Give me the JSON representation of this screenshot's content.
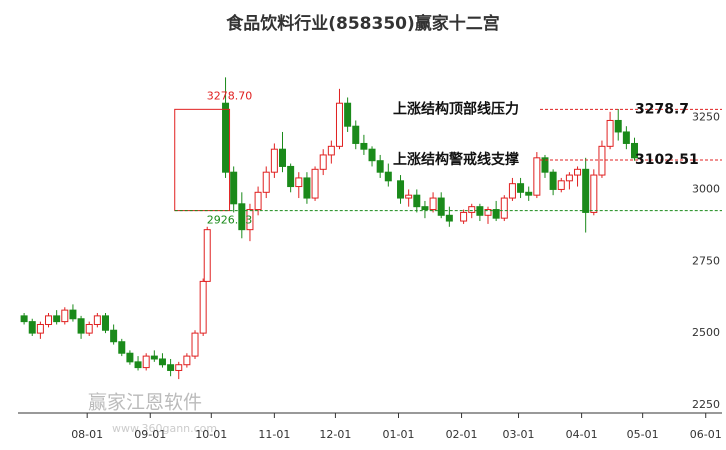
{
  "chart_data": {
    "type": "candlestick",
    "title": "食品饮料行业(858350)赢家十二宫",
    "watermark": "赢家江恩软件",
    "watermark_url": "www.360gann.com",
    "up_color": "#e02020",
    "down_color": "#1a8a1a",
    "xlim": [
      -3,
      343
    ],
    "ylim": [
      2222,
      3520
    ],
    "yticks": [
      2250,
      2500,
      2750,
      3000,
      3250
    ],
    "xticks": [
      {
        "value": 31,
        "label": "08-01"
      },
      {
        "value": 62,
        "label": "09-01"
      },
      {
        "value": 92,
        "label": "10-01"
      },
      {
        "value": 123,
        "label": "11-01"
      },
      {
        "value": 153,
        "label": "12-01"
      },
      {
        "value": 184,
        "label": "01-01"
      },
      {
        "value": 215,
        "label": "02-01"
      },
      {
        "value": 243,
        "label": "03-01"
      },
      {
        "value": 274,
        "label": "04-01"
      },
      {
        "value": 304,
        "label": "05-01"
      },
      {
        "value": 335,
        "label": "06-01"
      }
    ],
    "x": [
      0,
      4,
      8,
      12,
      16,
      20,
      24,
      28,
      32,
      36,
      40,
      44,
      48,
      52,
      56,
      60,
      64,
      68,
      72,
      76,
      80,
      84,
      88,
      90,
      99,
      103,
      107,
      111,
      115,
      119,
      123,
      127,
      131,
      135,
      139,
      143,
      147,
      151,
      155,
      159,
      163,
      167,
      171,
      175,
      179,
      185,
      189,
      193,
      197,
      201,
      205,
      209,
      216,
      220,
      224,
      228,
      232,
      236,
      240,
      244,
      248,
      252,
      256,
      260,
      264,
      268,
      272,
      276,
      280,
      284,
      288,
      292,
      296,
      300
    ],
    "open": [
      2560,
      2540,
      2500,
      2530,
      2560,
      2540,
      2580,
      2550,
      2500,
      2530,
      2560,
      2510,
      2470,
      2430,
      2400,
      2380,
      2420,
      2410,
      2390,
      2370,
      2390,
      2420,
      2500,
      2680,
      3300,
      3060,
      2950,
      2860,
      2930,
      2990,
      3060,
      3140,
      3080,
      3010,
      3040,
      2970,
      3070,
      3120,
      3150,
      3300,
      3220,
      3160,
      3140,
      3100,
      3060,
      3030,
      2970,
      2980,
      2940,
      2930,
      2970,
      2910,
      2890,
      2920,
      2940,
      2910,
      2930,
      2900,
      2970,
      3020,
      2990,
      2980,
      3110,
      3060,
      3000,
      3030,
      3050,
      3070,
      2920,
      3050,
      3150,
      3240,
      3200,
      3160
    ],
    "high": [
      2570,
      2550,
      2540,
      2570,
      2580,
      2590,
      2600,
      2560,
      2540,
      2570,
      2570,
      2530,
      2480,
      2440,
      2420,
      2430,
      2440,
      2430,
      2410,
      2400,
      2430,
      2510,
      2690,
      2870,
      3390,
      3080,
      2990,
      2950,
      3010,
      3080,
      3160,
      3200,
      3090,
      3060,
      3060,
      3080,
      3140,
      3170,
      3350,
      3320,
      3240,
      3190,
      3150,
      3120,
      3090,
      3050,
      3000,
      3000,
      2960,
      2990,
      2990,
      2940,
      2930,
      2950,
      2950,
      2940,
      2960,
      2980,
      3040,
      3040,
      3010,
      3130,
      3120,
      3070,
      3040,
      3060,
      3080,
      3110,
      3070,
      3170,
      3270,
      3280,
      3220,
      3180
    ],
    "low": [
      2530,
      2490,
      2480,
      2520,
      2530,
      2530,
      2540,
      2480,
      2490,
      2520,
      2500,
      2460,
      2420,
      2390,
      2370,
      2370,
      2400,
      2380,
      2350,
      2340,
      2380,
      2410,
      2490,
      2680,
      3040,
      2920,
      2830,
      2820,
      2910,
      2970,
      3040,
      3060,
      2990,
      2970,
      2950,
      2960,
      3050,
      3090,
      3140,
      3200,
      3140,
      3120,
      3080,
      3040,
      3010,
      2950,
      2940,
      2920,
      2900,
      2920,
      2900,
      2870,
      2880,
      2900,
      2890,
      2880,
      2890,
      2890,
      2960,
      2970,
      2960,
      2970,
      3040,
      2980,
      2990,
      3000,
      3010,
      2850,
      2910,
      3040,
      3140,
      3170,
      3140,
      3100
    ],
    "close": [
      2540,
      2500,
      2530,
      2560,
      2540,
      2580,
      2550,
      2500,
      2530,
      2560,
      2510,
      2470,
      2430,
      2400,
      2380,
      2420,
      2410,
      2390,
      2370,
      2390,
      2420,
      2500,
      2680,
      2860,
      3060,
      2950,
      2860,
      2930,
      2990,
      3060,
      3140,
      3080,
      3010,
      3040,
      2970,
      3070,
      3120,
      3150,
      3300,
      3220,
      3160,
      3140,
      3100,
      3060,
      3030,
      2970,
      2980,
      2940,
      2930,
      2970,
      2910,
      2890,
      2920,
      2940,
      2910,
      2930,
      2900,
      2970,
      3020,
      2990,
      2980,
      3110,
      3060,
      3000,
      3030,
      3050,
      3070,
      2920,
      3050,
      3150,
      3240,
      3200,
      3160,
      3110
    ],
    "levels": [
      {
        "text": "上涨结构顶部线压力",
        "value": 3278.7,
        "label": "3278.7",
        "box_label": "3278.70",
        "color": "#e02020"
      },
      {
        "text": "上涨结构警戒线支撑",
        "value": 3102.51,
        "label": "3102.51",
        "color": "#e02020"
      },
      {
        "value": 2926.33,
        "box_label": "2926.33",
        "color": "#1a8a1a"
      }
    ]
  }
}
